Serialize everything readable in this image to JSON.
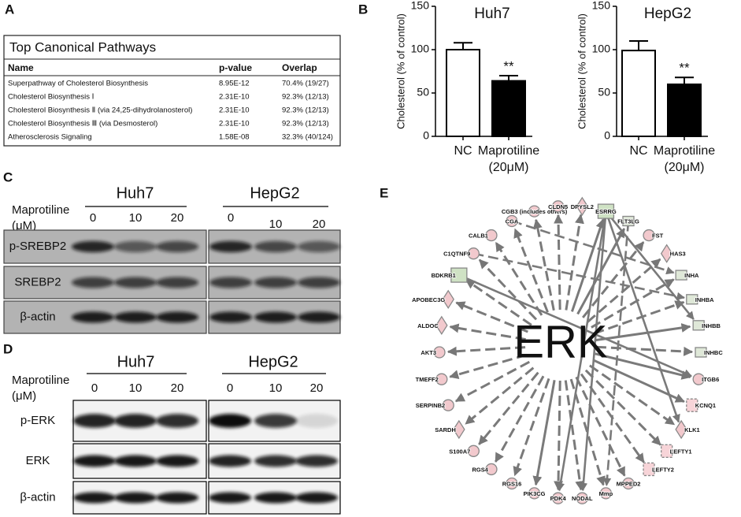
{
  "panel_labels": [
    "A",
    "B",
    "C",
    "D",
    "E"
  ],
  "table": {
    "title": "Top Canonical Pathways",
    "columns": [
      "Name",
      "p-value",
      "Overlap"
    ],
    "rows": [
      [
        "Superpathway of Cholesterol Biosynthesis",
        "8.95E-12",
        "70.4% (19/27)"
      ],
      [
        "Cholesterol Biosynthesis Ⅰ",
        "2.31E-10",
        "92.3% (12/13)"
      ],
      [
        "Cholesterol Biosynthesis Ⅱ (via 24,25-dihydrolanosterol)",
        "2.31E-10",
        "92.3% (12/13)"
      ],
      [
        "Cholesterol Biosynthesis Ⅲ (via Desmosterol)",
        "2.31E-10",
        "92.3% (12/13)"
      ],
      [
        "Atherosclerosis Signaling",
        "1.58E-08",
        "32.3% (40/124)"
      ]
    ]
  },
  "chart_data": [
    {
      "type": "bar",
      "title": "Huh7",
      "y_label": "Cholesterol (% of control)",
      "categories": [
        "NC",
        "Maprotiline (20μM)"
      ],
      "values": [
        100,
        64
      ],
      "errors": [
        8,
        6
      ],
      "colors": [
        "#ffffff",
        "#000000"
      ],
      "annotation": "**",
      "ylim": [
        0,
        150
      ],
      "yticks": [
        0,
        50,
        100,
        150
      ]
    },
    {
      "type": "bar",
      "title": "HepG2",
      "y_label": "Cholesterol (% of control)",
      "categories": [
        "NC",
        "Maprotiline (20μM)"
      ],
      "values": [
        99,
        60
      ],
      "errors": [
        11,
        8
      ],
      "colors": [
        "#ffffff",
        "#000000"
      ],
      "annotation": "**",
      "ylim": [
        0,
        150
      ],
      "yticks": [
        0,
        50,
        100,
        150
      ]
    }
  ],
  "blots": [
    {
      "treatment": "Maprotiline",
      "unit": "(μM)",
      "cell_lines": [
        {
          "name": "Huh7",
          "doses": [
            0,
            10,
            20
          ]
        },
        {
          "name": "HepG2",
          "doses": [
            0,
            10,
            20
          ]
        }
      ],
      "rows": [
        "p-SREBP2",
        "SREBP2",
        "β-actin"
      ]
    },
    {
      "treatment": "Maprotiline",
      "unit": "(μM)",
      "cell_lines": [
        {
          "name": "Huh7",
          "doses": [
            0,
            10,
            20
          ]
        },
        {
          "name": "HepG2",
          "doses": [
            0,
            10,
            20
          ]
        }
      ],
      "rows": [
        "p-ERK",
        "ERK",
        "β-actin"
      ]
    }
  ],
  "network": {
    "center": "ERK",
    "nodes": [
      "AKT3",
      "ALDOC",
      "APOBEC3G",
      "BDKRB1",
      "C1QTNF9",
      "CALB1",
      "CGA",
      "CGB3 (includes others)",
      "CLDN5",
      "DPYSL2",
      "ESRRG",
      "FLT3LG",
      "FST",
      "HAS3",
      "INHA",
      "INHBA",
      "INHBB",
      "INHBC",
      "ITGB6",
      "KCNQ1",
      "KLK1",
      "LEFTY1",
      "LEFTY2",
      "MPPED2",
      "Mmp",
      "NODAL",
      "PDK4",
      "PIK3CG",
      "RGS16",
      "RGS4",
      "S100A7",
      "SARDH",
      "SERPINB2",
      "TMEFF2"
    ]
  }
}
